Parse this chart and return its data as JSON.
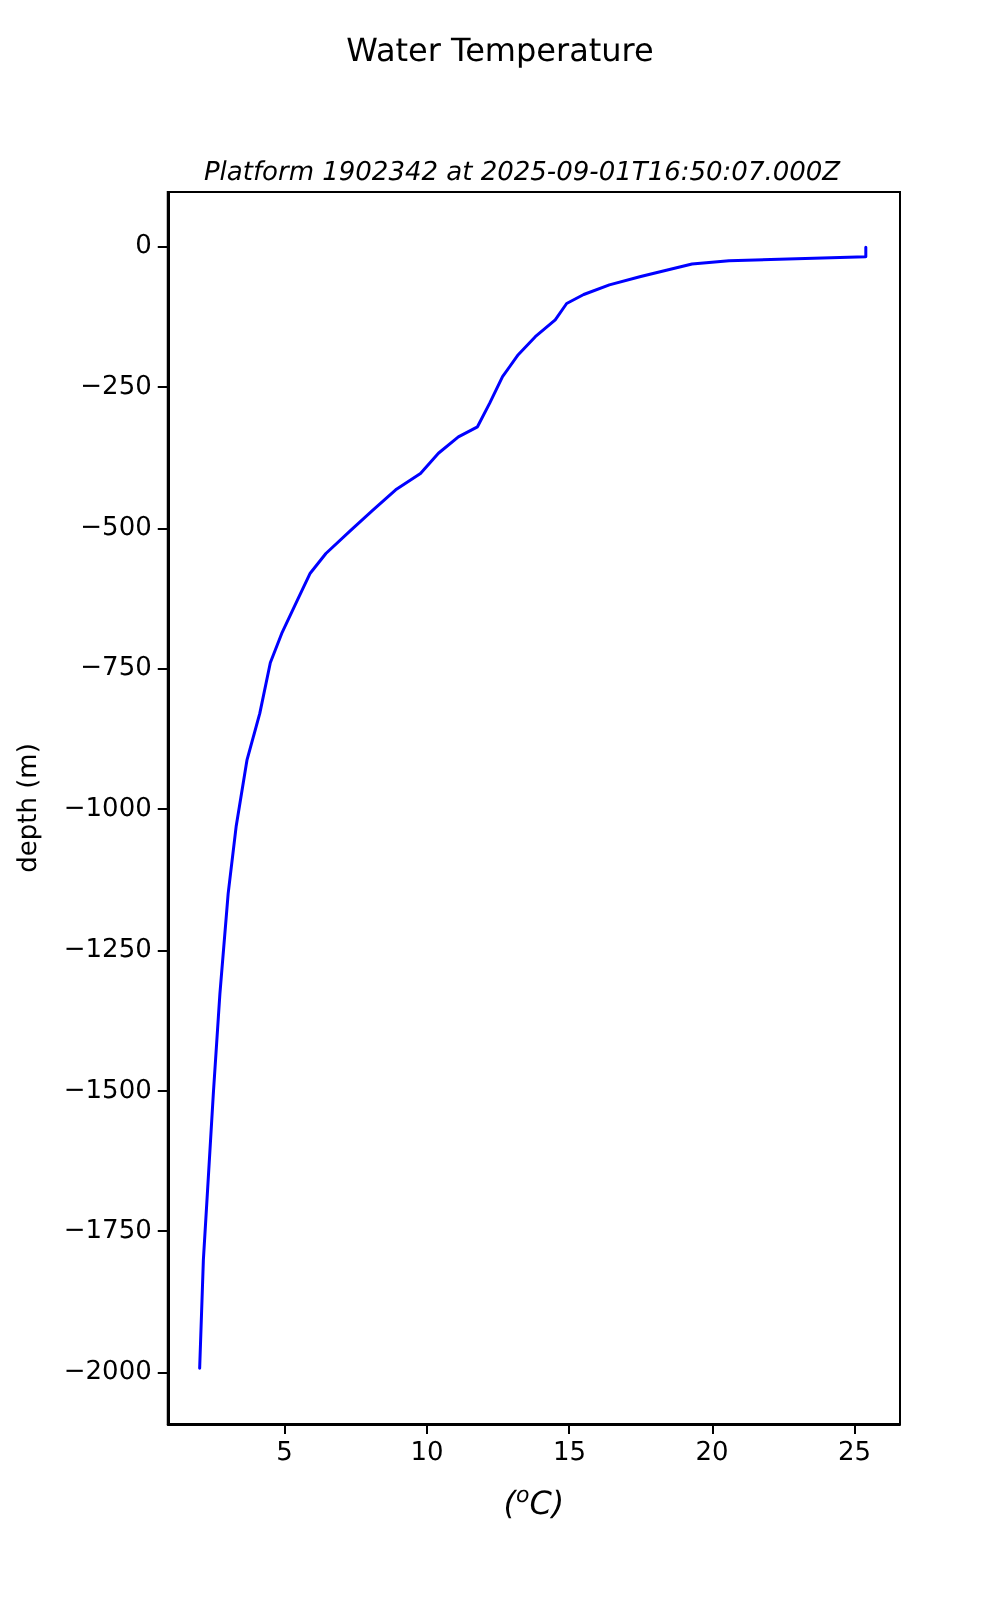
{
  "chart_data": {
    "type": "line",
    "title": "Water Temperature",
    "subtitle": "Platform 1902342 at 2025-09-01T16:50:07.000Z",
    "xlabel": "($^{o}$C)",
    "ylabel": "depth (m)",
    "series": [
      {
        "color": "#0000ff",
        "x": [
          25.4,
          25.4,
          20.6,
          19.3,
          18.4,
          17.5,
          16.4,
          15.5,
          14.9,
          14.5,
          13.8,
          13.2,
          12.65,
          12.2,
          11.77,
          11.1,
          10.4,
          9.77,
          8.9,
          8.1,
          7.34,
          6.45,
          5.9,
          5.45,
          4.9,
          4.5,
          4.13,
          3.68,
          3.3,
          3.02,
          2.73,
          2.5,
          2.29,
          2.15,
          2.02
        ],
        "values": [
          -2,
          -19,
          -26,
          -32,
          -43,
          -54,
          -69,
          -86,
          -102,
          -131,
          -161,
          -193,
          -232,
          -279,
          -321,
          -339,
          -368,
          -404,
          -433,
          -469,
          -504,
          -546,
          -581,
          -629,
          -688,
          -740,
          -830,
          -913,
          -1031,
          -1150,
          -1328,
          -1505,
          -1683,
          -1801,
          -1993
        ]
      }
    ],
    "xlim": [
      0.9,
      26.6
    ],
    "xticks": [
      5,
      10,
      15,
      20,
      25
    ],
    "ylim": [
      -2092,
      96
    ],
    "yticks": [
      0,
      -250,
      -500,
      -750,
      -1000,
      -1250,
      -1500,
      -1750,
      -2000
    ],
    "grid": false,
    "line_style": "solid",
    "marker": "none"
  }
}
